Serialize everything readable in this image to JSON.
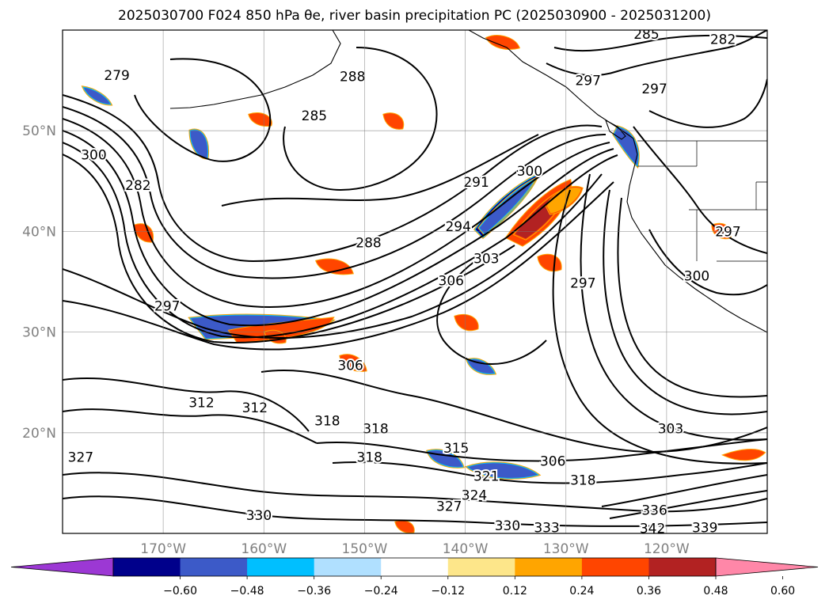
{
  "chart_data": {
    "type": "contour-map",
    "title": "2025030700 F024 850 hPa θe, river basin precipitation PC (2025030900 - 2025031200)",
    "map": {
      "lon_range": [
        -180,
        -110
      ],
      "lat_range": [
        10,
        60
      ],
      "lat_ticks": [
        {
          "value": 20,
          "label": "20°N"
        },
        {
          "value": 30,
          "label": "30°N"
        },
        {
          "value": 40,
          "label": "40°N"
        },
        {
          "value": 50,
          "label": "50°N"
        }
      ],
      "lon_ticks": [
        {
          "value": -170,
          "label": "170°W"
        },
        {
          "value": -160,
          "label": "160°W"
        },
        {
          "value": -150,
          "label": "150°W"
        },
        {
          "value": -140,
          "label": "140°W"
        },
        {
          "value": -130,
          "label": "130°W"
        },
        {
          "value": -120,
          "label": "120°W"
        }
      ],
      "grid": true
    },
    "contour_labels": [
      {
        "lon": -174.6,
        "lat": 55.5,
        "text": "279"
      },
      {
        "lon": -151.2,
        "lat": 55.4,
        "text": "288"
      },
      {
        "lon": -155.0,
        "lat": 51.5,
        "text": "285"
      },
      {
        "lon": -172.5,
        "lat": 44.6,
        "text": "282"
      },
      {
        "lon": -149.6,
        "lat": 38.9,
        "text": "288"
      },
      {
        "lon": -140.7,
        "lat": 40.5,
        "text": "294"
      },
      {
        "lon": -138.9,
        "lat": 44.9,
        "text": "291"
      },
      {
        "lon": -133.6,
        "lat": 46.0,
        "text": "300"
      },
      {
        "lon": -137.9,
        "lat": 37.3,
        "text": "303"
      },
      {
        "lon": -141.4,
        "lat": 35.1,
        "text": "306"
      },
      {
        "lon": -169.6,
        "lat": 32.6,
        "text": "297"
      },
      {
        "lon": -128.3,
        "lat": 34.9,
        "text": "297"
      },
      {
        "lon": -127.8,
        "lat": 55.0,
        "text": "297"
      },
      {
        "lon": -121.2,
        "lat": 54.2,
        "text": "297"
      },
      {
        "lon": -122.0,
        "lat": 59.6,
        "text": "285"
      },
      {
        "lon": -114.4,
        "lat": 59.1,
        "text": "282"
      },
      {
        "lon": -117.0,
        "lat": 35.6,
        "text": "300"
      },
      {
        "lon": -151.4,
        "lat": 26.7,
        "text": "306"
      },
      {
        "lon": -176.9,
        "lat": 47.6,
        "text": "300"
      },
      {
        "lon": -166.2,
        "lat": 23.0,
        "text": "312"
      },
      {
        "lon": -160.9,
        "lat": 22.5,
        "text": "312"
      },
      {
        "lon": -153.7,
        "lat": 21.2,
        "text": "318"
      },
      {
        "lon": -148.9,
        "lat": 20.4,
        "text": "318"
      },
      {
        "lon": -149.5,
        "lat": 17.6,
        "text": "318"
      },
      {
        "lon": -140.9,
        "lat": 18.5,
        "text": "315"
      },
      {
        "lon": -137.9,
        "lat": 15.7,
        "text": "321"
      },
      {
        "lon": -139.1,
        "lat": 13.8,
        "text": "324"
      },
      {
        "lon": -141.6,
        "lat": 12.7,
        "text": "327"
      },
      {
        "lon": -131.3,
        "lat": 17.2,
        "text": "306"
      },
      {
        "lon": -128.3,
        "lat": 15.3,
        "text": "318"
      },
      {
        "lon": -119.6,
        "lat": 20.4,
        "text": "303"
      },
      {
        "lon": -178.2,
        "lat": 17.6,
        "text": "327"
      },
      {
        "lon": -160.5,
        "lat": 11.8,
        "text": "330"
      },
      {
        "lon": -135.8,
        "lat": 10.8,
        "text": "330"
      },
      {
        "lon": -131.9,
        "lat": 10.6,
        "text": "333"
      },
      {
        "lon": -116.2,
        "lat": 10.6,
        "text": "339"
      },
      {
        "lon": -121.4,
        "lat": 10.5,
        "text": "342"
      },
      {
        "lon": -121.2,
        "lat": 12.3,
        "text": "336"
      },
      {
        "lon": -113.9,
        "lat": 40.0,
        "text": "297"
      }
    ],
    "colorbar": {
      "colors": [
        "#9c38d4",
        "#00008b",
        "#3c5ac8",
        "#00bfff",
        "#b0e0ff",
        "#ffffff",
        "#fde68a",
        "#ffa500",
        "#ff4500",
        "#b22222",
        "#ff87a8"
      ],
      "ticks": [
        {
          "value": -0.6,
          "label": "−0.60"
        },
        {
          "value": -0.48,
          "label": "−0.48"
        },
        {
          "value": -0.36,
          "label": "−0.36"
        },
        {
          "value": -0.24,
          "label": "−0.24"
        },
        {
          "value": -0.12,
          "label": "−0.12"
        },
        {
          "value": 0.12,
          "label": "0.12"
        },
        {
          "value": 0.24,
          "label": "0.24"
        },
        {
          "value": 0.36,
          "label": "0.36"
        },
        {
          "value": 0.48,
          "label": "0.48"
        },
        {
          "value": 0.6,
          "label": "0.60"
        }
      ],
      "extend": "both"
    }
  }
}
